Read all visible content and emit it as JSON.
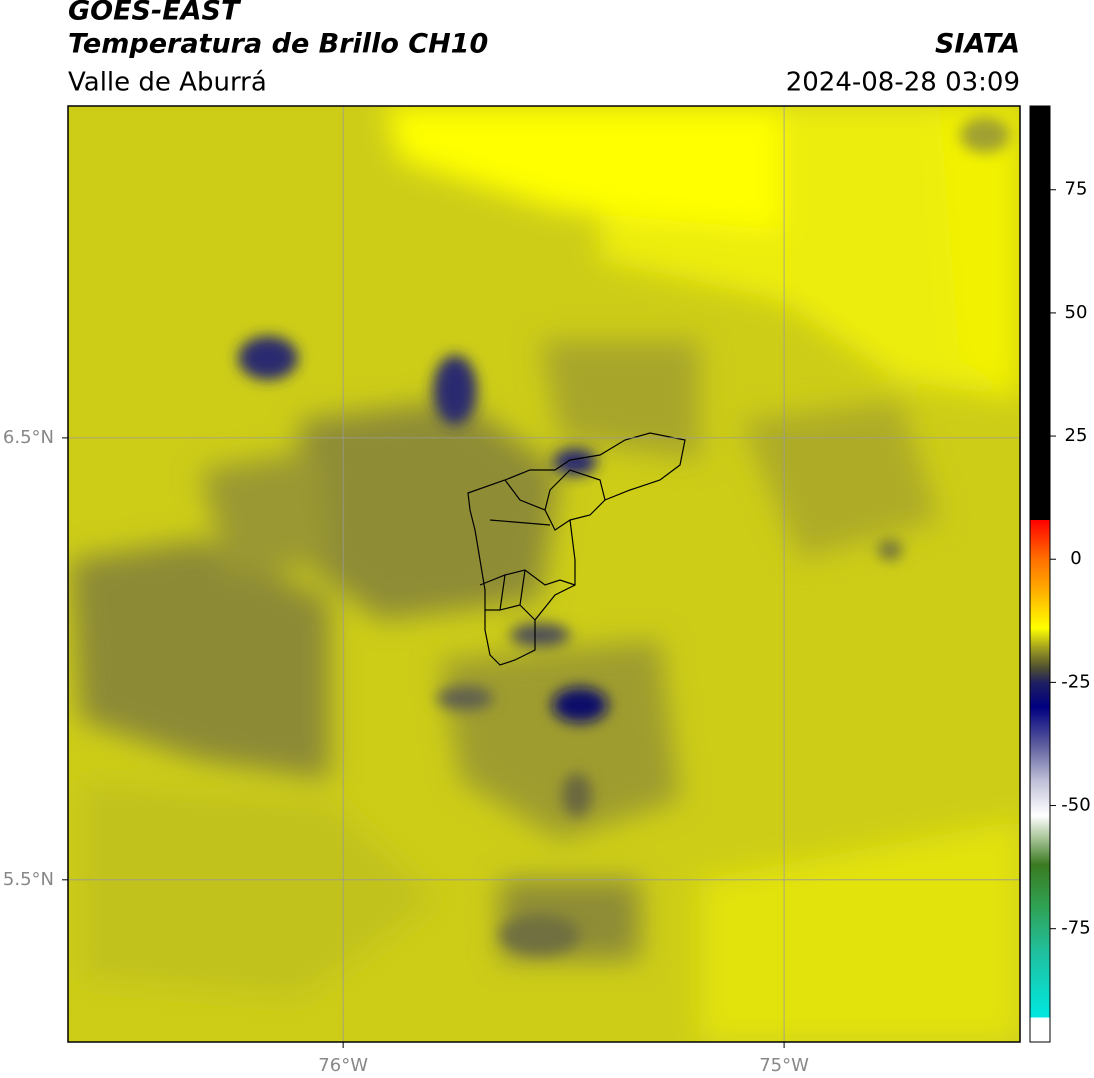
{
  "header": {
    "title": "GOES-EAST",
    "subtitle": "Temperatura de Brillo CH10",
    "region": "Valle de Aburrá",
    "source": "SIATA",
    "datetime": "2024-08-28 03:09"
  },
  "map": {
    "xlim": [
      -76.624,
      -74.465
    ],
    "ylim": [
      5.133,
      7.251
    ],
    "xticks": [
      {
        "value": -76,
        "label": "76°W"
      },
      {
        "value": -75,
        "label": "75°W"
      }
    ],
    "yticks": [
      {
        "value": 6.5,
        "label": "6.5°N"
      },
      {
        "value": 5.5,
        "label": "5.5°N"
      }
    ],
    "grid": true
  },
  "colorbar": {
    "lim": [
      -98,
      92
    ],
    "ticks": [
      75,
      50,
      25,
      0,
      -25,
      -50,
      -75
    ],
    "colormap": [
      {
        "value": -98,
        "color": "#ffffff"
      },
      {
        "value": -93,
        "color": "#ffffff"
      },
      {
        "value": -93,
        "color": "#00e8e0"
      },
      {
        "value": -80,
        "color": "#20c0a0"
      },
      {
        "value": -70,
        "color": "#30a050"
      },
      {
        "value": -62,
        "color": "#3a7a20"
      },
      {
        "value": -57,
        "color": "#a0c090"
      },
      {
        "value": -52,
        "color": "#ffffff"
      },
      {
        "value": -45,
        "color": "#c0c0d8"
      },
      {
        "value": -38,
        "color": "#6060a0"
      },
      {
        "value": -30,
        "color": "#000080"
      },
      {
        "value": -25,
        "color": "#202060"
      },
      {
        "value": -22,
        "color": "#505030"
      },
      {
        "value": -18,
        "color": "#a0a020"
      },
      {
        "value": -14,
        "color": "#ffff00"
      },
      {
        "value": -5,
        "color": "#ffa000"
      },
      {
        "value": 0,
        "color": "#ff7000"
      },
      {
        "value": 8,
        "color": "#ff0000"
      },
      {
        "value": 8,
        "color": "#000000"
      },
      {
        "value": 92,
        "color": "#000000"
      }
    ]
  }
}
